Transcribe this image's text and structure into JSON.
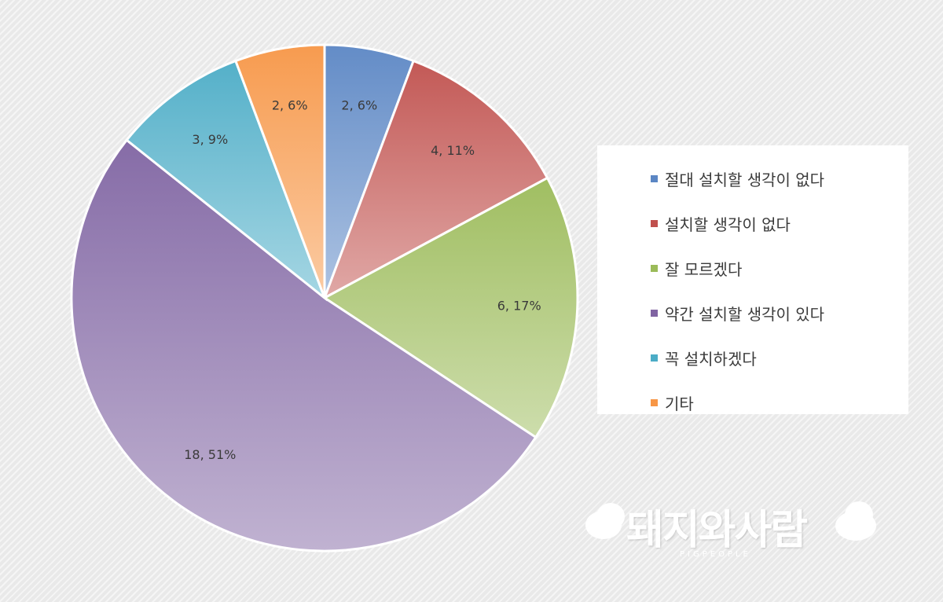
{
  "chart_data": {
    "type": "pie",
    "title": "",
    "series": [
      {
        "name": "절대 설치할 생각이 없다",
        "value": 2,
        "percent_label": "2, 6%",
        "color": "#5b86c4"
      },
      {
        "name": "설치할 생각이 없다",
        "value": 4,
        "percent_label": "4, 11%",
        "color": "#c0504d"
      },
      {
        "name": "잘 모르겠다",
        "value": 6,
        "percent_label": "6, 17%",
        "color": "#9bbb59"
      },
      {
        "name": "약간 설치할 생각이 있다",
        "value": 18,
        "percent_label": "18, 51%",
        "color": "#8064a2"
      },
      {
        "name": "꼭 설치하겠다",
        "value": 3,
        "percent_label": "3, 9%",
        "color": "#4bacc6"
      },
      {
        "name": "기타",
        "value": 2,
        "percent_label": "2, 6%",
        "color": "#f79646"
      }
    ],
    "legend_position": "right",
    "start_angle": "12 o'clock, clockwise"
  },
  "watermark": {
    "text": "돼지와사람",
    "subtext": "PIGPEOPLE"
  }
}
